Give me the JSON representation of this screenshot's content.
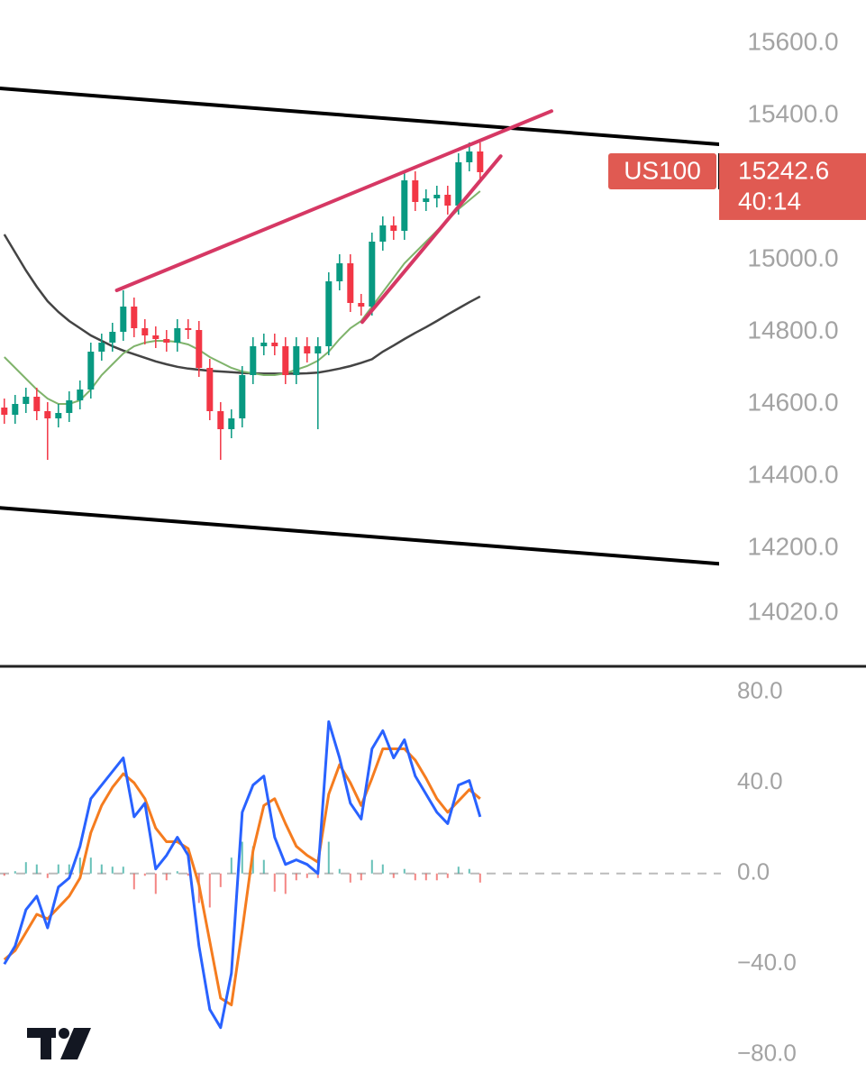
{
  "chart_data": [
    {
      "type": "candlestick",
      "symbol": "US100",
      "countdown": "40:14",
      "up_color": "#089981",
      "down_color": "#f23645",
      "label_color": "#e05a52",
      "ylim": [
        13875,
        15720
      ],
      "yticks": [
        {
          "value": 15600,
          "label": "15600.0"
        },
        {
          "value": 15400,
          "label": "15400.0"
        },
        {
          "value": 15000,
          "label": "15000.0"
        },
        {
          "value": 14800,
          "label": "14800.0"
        },
        {
          "value": 14600,
          "label": "14600.0"
        },
        {
          "value": 14400,
          "label": "14400.0"
        },
        {
          "value": 14200,
          "label": "14200.0"
        },
        {
          "value": 14020,
          "label": "14020.0"
        }
      ],
      "open": [
        14590,
        14570,
        14600,
        14620,
        14580,
        14560,
        14575,
        14610,
        14640,
        14745,
        14770,
        14800,
        14870,
        14810,
        14790,
        14780,
        14770,
        14810,
        14805,
        14700,
        14580,
        14530,
        14560,
        14680,
        14760,
        14770,
        14760,
        14680,
        14760,
        14740,
        14760,
        14940,
        14990,
        14880,
        14870,
        15050,
        15095,
        15080,
        15220,
        15160,
        15170,
        15180,
        15150,
        15270,
        15300
      ],
      "high": [
        14615,
        14625,
        14645,
        14645,
        14605,
        14600,
        14635,
        14665,
        14770,
        14795,
        14825,
        14915,
        14895,
        14835,
        14815,
        14805,
        14835,
        14835,
        14830,
        14725,
        14605,
        14585,
        14705,
        14785,
        14795,
        14795,
        14785,
        14785,
        14785,
        14785,
        14965,
        15015,
        15015,
        14905,
        15075,
        15120,
        15120,
        15245,
        15245,
        15195,
        15205,
        15205,
        15295,
        15325,
        15325
      ],
      "low": [
        14545,
        14545,
        14575,
        14555,
        14445,
        14535,
        14550,
        14585,
        14615,
        14720,
        14745,
        14775,
        14785,
        14765,
        14755,
        14745,
        14745,
        14780,
        14675,
        14555,
        14445,
        14505,
        14535,
        14655,
        14735,
        14735,
        14655,
        14655,
        14715,
        14530,
        14735,
        14915,
        14855,
        14845,
        14845,
        15025,
        15055,
        15055,
        15135,
        15135,
        15145,
        15125,
        15125,
        15245,
        15217.6
      ],
      "close": [
        14570,
        14600,
        14620,
        14580,
        14560,
        14575,
        14610,
        14640,
        14745,
        14770,
        14800,
        14870,
        14810,
        14790,
        14780,
        14770,
        14810,
        14805,
        14700,
        14580,
        14530,
        14560,
        14680,
        14760,
        14770,
        14760,
        14680,
        14760,
        14740,
        14760,
        14940,
        14990,
        14880,
        14870,
        15050,
        15095,
        15080,
        15220,
        15160,
        15170,
        15180,
        15150,
        15270,
        15300,
        15242.6
      ],
      "ma": [
        {
          "color": "#444444",
          "values": [
            15070,
            15020,
            14970,
            14925,
            14885,
            14855,
            14830,
            14810,
            14790,
            14775,
            14760,
            14748,
            14738,
            14728,
            14718,
            14710,
            14703,
            14698,
            14695,
            14692,
            14690,
            14688,
            14686,
            14685,
            14684,
            14684,
            14684,
            14684,
            14685,
            14687,
            14692,
            14698,
            14705,
            14714,
            14724,
            14745,
            14762,
            14780,
            14797,
            14813,
            14830,
            14848,
            14865,
            14882,
            14898
          ]
        },
        {
          "color": "#7fb36b",
          "values": [
            14730,
            14700,
            14670,
            14640,
            14615,
            14600,
            14600,
            14610,
            14640,
            14680,
            14710,
            14740,
            14760,
            14770,
            14775,
            14775,
            14772,
            14765,
            14750,
            14730,
            14715,
            14700,
            14690,
            14685,
            14680,
            14680,
            14685,
            14695,
            14705,
            14720,
            14745,
            14780,
            14810,
            14830,
            14870,
            14910,
            14950,
            14990,
            15020,
            15050,
            15080,
            15110,
            15140,
            15165,
            15190
          ]
        }
      ],
      "trendlines": [
        {
          "color": "#000000",
          "x": [
            -0.4,
            66.1
          ],
          "y": [
            15475,
            15320
          ]
        },
        {
          "color": "#000000",
          "x": [
            -0.4,
            66.1
          ],
          "y": [
            14312,
            14157
          ]
        },
        {
          "color": "#d63864",
          "x": [
            10.4,
            50.6
          ],
          "y": [
            14915,
            15412
          ]
        },
        {
          "color": "#d63864",
          "x": [
            33.1,
            45.9
          ],
          "y": [
            14827,
            15287
          ]
        }
      ]
    },
    {
      "type": "macd",
      "ylim": [
        -92,
        91
      ],
      "yticks": [
        {
          "value": 80,
          "label": "80.0"
        },
        {
          "value": 40,
          "label": "40.0"
        },
        {
          "value": 0,
          "label": "0.0"
        },
        {
          "value": -40,
          "label": "−40.0"
        },
        {
          "value": -80,
          "label": "−80.0"
        }
      ],
      "series": [
        {
          "color": "#2962ff",
          "values": [
            -40,
            -32,
            -16,
            -10,
            -24,
            -6,
            -2,
            12,
            33,
            39,
            45,
            51,
            25,
            31,
            2,
            8,
            16,
            8,
            -32,
            -60,
            -68,
            -44,
            27,
            39,
            43,
            16,
            4,
            6,
            4,
            0,
            67,
            51,
            31,
            24,
            55,
            63,
            51,
            59,
            43,
            35,
            27,
            22,
            39,
            41,
            25
          ]
        },
        {
          "color": "#f57c1f",
          "values": [
            -38,
            -34,
            -26,
            -18,
            -20,
            -15,
            -10,
            -2,
            18,
            30,
            38,
            44,
            40,
            33,
            20,
            14,
            14,
            11,
            -5,
            -30,
            -55,
            -58,
            -25,
            10,
            30,
            33,
            22,
            12,
            8,
            5,
            35,
            48,
            40,
            30,
            42,
            55,
            55,
            55,
            50,
            42,
            33,
            27,
            32,
            37,
            33
          ]
        }
      ],
      "histogram": {
        "up_color": "#26a69a",
        "down_color": "#ef5350",
        "values": [
          -1,
          1,
          5,
          4,
          -2,
          4,
          4,
          7,
          7,
          4,
          3,
          3,
          -7,
          -1,
          -9,
          -3,
          1,
          -1,
          -13,
          -15,
          -6,
          7,
          14,
          12,
          6,
          -8,
          -9,
          -3,
          -2,
          -2,
          14,
          2,
          -4,
          -3,
          6,
          4,
          -2,
          2,
          -3,
          -3,
          -3,
          -2,
          3,
          2,
          -4
        ]
      }
    }
  ]
}
